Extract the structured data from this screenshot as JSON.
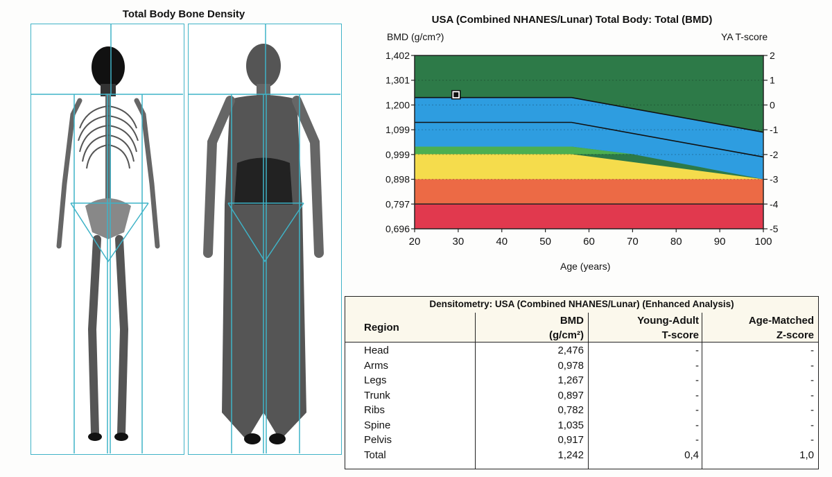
{
  "left_title": "Total Body Bone Density",
  "chart_data": {
    "type": "area",
    "title": "USA (Combined NHANES/Lunar) Total Body: Total (BMD)",
    "ylabel_left": "BMD (g/cm?)",
    "ylabel_right": "YA T-score",
    "xlabel": "Age (years)",
    "x_ticks": [
      "20",
      "30",
      "40",
      "50",
      "60",
      "70",
      "80",
      "90",
      "100"
    ],
    "y_ticks_left": [
      "1,402",
      "1,301",
      "1,200",
      "1,099",
      "0,999",
      "0,898",
      "0,797",
      "0,696"
    ],
    "y_ticks_right": [
      "2",
      "1",
      "0",
      "-1",
      "-2",
      "-3",
      "-4",
      "-5"
    ],
    "xlim": [
      20,
      100
    ],
    "ylim": [
      0.696,
      1.402
    ],
    "grid": true,
    "bands": [
      {
        "name": "dark-green",
        "color": "#2d7a48"
      },
      {
        "name": "blue",
        "color": "#2e9de0"
      },
      {
        "name": "light-green",
        "color": "#4caf50"
      },
      {
        "name": "yellow",
        "color": "#f5dc4c"
      },
      {
        "name": "orange",
        "color": "#ec6a45"
      },
      {
        "name": "red",
        "color": "#e1394e"
      }
    ],
    "curves": {
      "plus_0_5": [
        [
          20,
          1.2305
        ],
        [
          56,
          1.2305
        ],
        [
          100,
          1.0895
        ]
      ],
      "minus_1_5": [
        [
          20,
          1.1295
        ],
        [
          56,
          1.1295
        ],
        [
          100,
          0.9885
        ]
      ],
      "upper_light_green": [
        [
          20,
          1.0305
        ],
        [
          56,
          1.0305
        ],
        [
          70,
          1.0
        ]
      ],
      "upper_yellow": [
        [
          20,
          1.0
        ],
        [
          56,
          1.0
        ],
        [
          100,
          0.898
        ]
      ]
    },
    "patient_point": {
      "x": 29.5,
      "y": 1.242
    }
  },
  "table": {
    "caption": "Densitometry: USA (Combined NHANES/Lunar) (Enhanced Analysis)",
    "headers": {
      "region": "Region",
      "bmd_1": "BMD",
      "bmd_2": "(g/cm²)",
      "t_1": "Young-Adult",
      "t_2": "T-score",
      "z_1": "Age-Matched",
      "z_2": "Z-score"
    },
    "rows": [
      {
        "region": "Head",
        "bmd": "2,476",
        "t": "-",
        "z": "-"
      },
      {
        "region": "Arms",
        "bmd": "0,978",
        "t": "-",
        "z": "-"
      },
      {
        "region": "Legs",
        "bmd": "1,267",
        "t": "-",
        "z": "-"
      },
      {
        "region": "Trunk",
        "bmd": "0,897",
        "t": "-",
        "z": "-"
      },
      {
        "region": "Ribs",
        "bmd": "0,782",
        "t": "-",
        "z": "-"
      },
      {
        "region": "Spine",
        "bmd": "1,035",
        "t": "-",
        "z": "-"
      },
      {
        "region": "Pelvis",
        "bmd": "0,917",
        "t": "-",
        "z": "-"
      },
      {
        "region": "Total",
        "bmd": "1,242",
        "t": "0,4",
        "z": "1,0"
      }
    ]
  }
}
